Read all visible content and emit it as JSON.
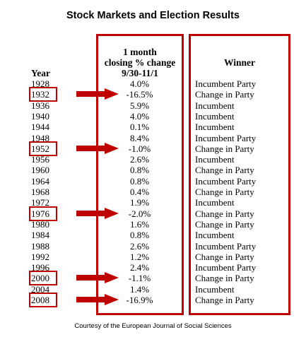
{
  "title": "Stock Markets and Election Results",
  "headers": {
    "year": "Year",
    "pct_line1": "1 month",
    "pct_line2": "closing % change",
    "pct_line3": "9/30-11/1",
    "winner": "Winner"
  },
  "colors": {
    "highlight": "#c00000"
  },
  "rows": [
    {
      "year": "1928",
      "pct": "4.0%",
      "winner": "Incumbent Party",
      "highlight": false
    },
    {
      "year": "1932",
      "pct": "-16.5%",
      "winner": "Change in Party",
      "highlight": true
    },
    {
      "year": "1936",
      "pct": "5.9%",
      "winner": "Incumbent",
      "highlight": false
    },
    {
      "year": "1940",
      "pct": "4.0%",
      "winner": "Incumbent",
      "highlight": false
    },
    {
      "year": "1944",
      "pct": "0.1%",
      "winner": "Incumbent",
      "highlight": false
    },
    {
      "year": "1948",
      "pct": "8.4%",
      "winner": "Incumbent Party",
      "highlight": false
    },
    {
      "year": "1952",
      "pct": "-1.0%",
      "winner": "Change in Party",
      "highlight": true
    },
    {
      "year": "1956",
      "pct": "2.6%",
      "winner": "Incumbent",
      "highlight": false
    },
    {
      "year": "1960",
      "pct": "0.8%",
      "winner": "Change in Party",
      "highlight": false
    },
    {
      "year": "1964",
      "pct": "0.8%",
      "winner": "Incumbent Party",
      "highlight": false
    },
    {
      "year": "1968",
      "pct": "0.4%",
      "winner": "Change in Party",
      "highlight": false
    },
    {
      "year": "1972",
      "pct": "1.9%",
      "winner": "Incumbent",
      "highlight": false
    },
    {
      "year": "1976",
      "pct": "-2.0%",
      "winner": "Change in Party",
      "highlight": true
    },
    {
      "year": "1980",
      "pct": "1.6%",
      "winner": "Change in Party",
      "highlight": false
    },
    {
      "year": "1984",
      "pct": "0.8%",
      "winner": "Incumbent",
      "highlight": false
    },
    {
      "year": "1988",
      "pct": "2.6%",
      "winner": "Incumbent Party",
      "highlight": false
    },
    {
      "year": "1992",
      "pct": "1.2%",
      "winner": "Change in Party",
      "highlight": false
    },
    {
      "year": "1996",
      "pct": "2.4%",
      "winner": "Incumbent Party",
      "highlight": false
    },
    {
      "year": "2000",
      "pct": "-1.1%",
      "winner": "Change in Party",
      "highlight": true
    },
    {
      "year": "2004",
      "pct": "1.4%",
      "winner": "Incumbent",
      "highlight": false
    },
    {
      "year": "2008",
      "pct": "-16.9%",
      "winner": "Change in Party",
      "highlight": true
    }
  ],
  "footer": "Courtesy of the European Journal of Social Sciences"
}
